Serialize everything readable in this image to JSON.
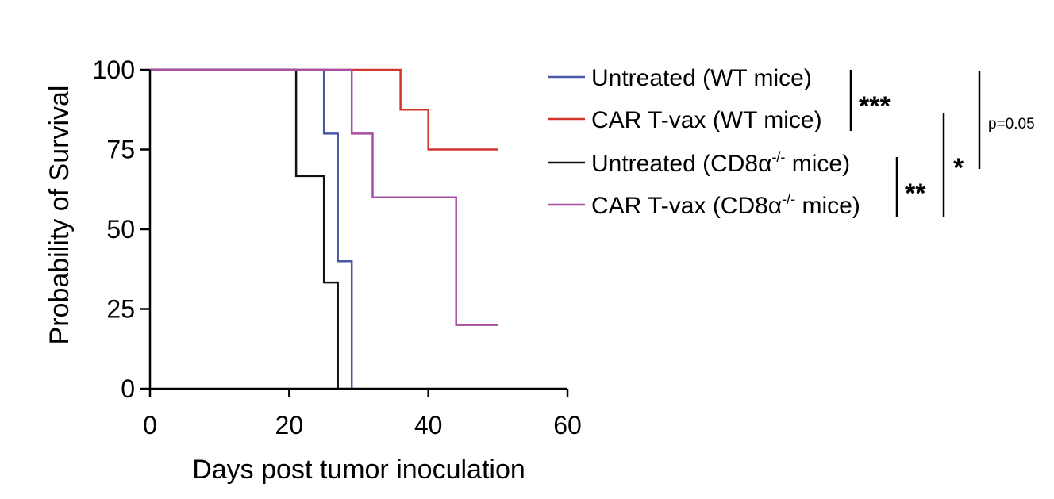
{
  "chart_data": {
    "type": "line",
    "subtype": "kaplan-meier step",
    "xlabel": "Days post tumor inoculation",
    "ylabel": "Probability of Survival",
    "xlim": [
      0,
      60
    ],
    "ylim": [
      0,
      100
    ],
    "xticks": [
      "0",
      "20",
      "40",
      "60"
    ],
    "yticks": [
      "0",
      "25",
      "50",
      "75",
      "100"
    ],
    "xtick_values": [
      0,
      20,
      40,
      60
    ],
    "ytick_values": [
      0,
      25,
      50,
      75,
      100
    ],
    "series": [
      {
        "name": "Untreated (WT mice)",
        "color": "#4a56a6",
        "points": [
          [
            0,
            100
          ],
          [
            25,
            100
          ],
          [
            25,
            80
          ],
          [
            27,
            80
          ],
          [
            27,
            40
          ],
          [
            29,
            40
          ],
          [
            29,
            0
          ]
        ]
      },
      {
        "name": "CAR T-vax (WT mice)",
        "color": "#d2352b",
        "points": [
          [
            0,
            100
          ],
          [
            36,
            100
          ],
          [
            36,
            87.5
          ],
          [
            40,
            87.5
          ],
          [
            40,
            75
          ],
          [
            50,
            75
          ]
        ]
      },
      {
        "name": "Untreated (CD8α-/- mice)",
        "label_base": "Untreated (CD8α",
        "label_sup": "-/-",
        "label_tail": " mice)",
        "color": "#111111",
        "points": [
          [
            0,
            100
          ],
          [
            21,
            100
          ],
          [
            21,
            66.7
          ],
          [
            25,
            66.7
          ],
          [
            25,
            33.3
          ],
          [
            27,
            33.3
          ],
          [
            27,
            0
          ]
        ]
      },
      {
        "name": "CAR T-vax (CD8α-/- mice)",
        "label_base": "CAR T-vax (CD8α",
        "label_sup": "-/-",
        "label_tail": " mice)",
        "color": "#a84fa6",
        "points": [
          [
            0,
            100
          ],
          [
            29,
            100
          ],
          [
            29,
            80
          ],
          [
            32,
            80
          ],
          [
            32,
            60
          ],
          [
            44,
            60
          ],
          [
            44,
            20
          ],
          [
            50,
            20
          ]
        ]
      }
    ],
    "significance": [
      {
        "label": "***",
        "comparison": "Untreated (WT mice) vs CAR T-vax (WT mice)"
      },
      {
        "label": "**",
        "comparison": "Untreated (CD8α-/- mice) vs CAR T-vax (CD8α-/- mice)"
      },
      {
        "label": "*",
        "comparison": "CAR T-vax (WT mice) vs CAR T-vax (CD8α-/- mice)"
      },
      {
        "label": "p=0.05",
        "comparison": "Untreated (WT mice) vs Untreated (CD8α-/- mice)"
      }
    ]
  }
}
